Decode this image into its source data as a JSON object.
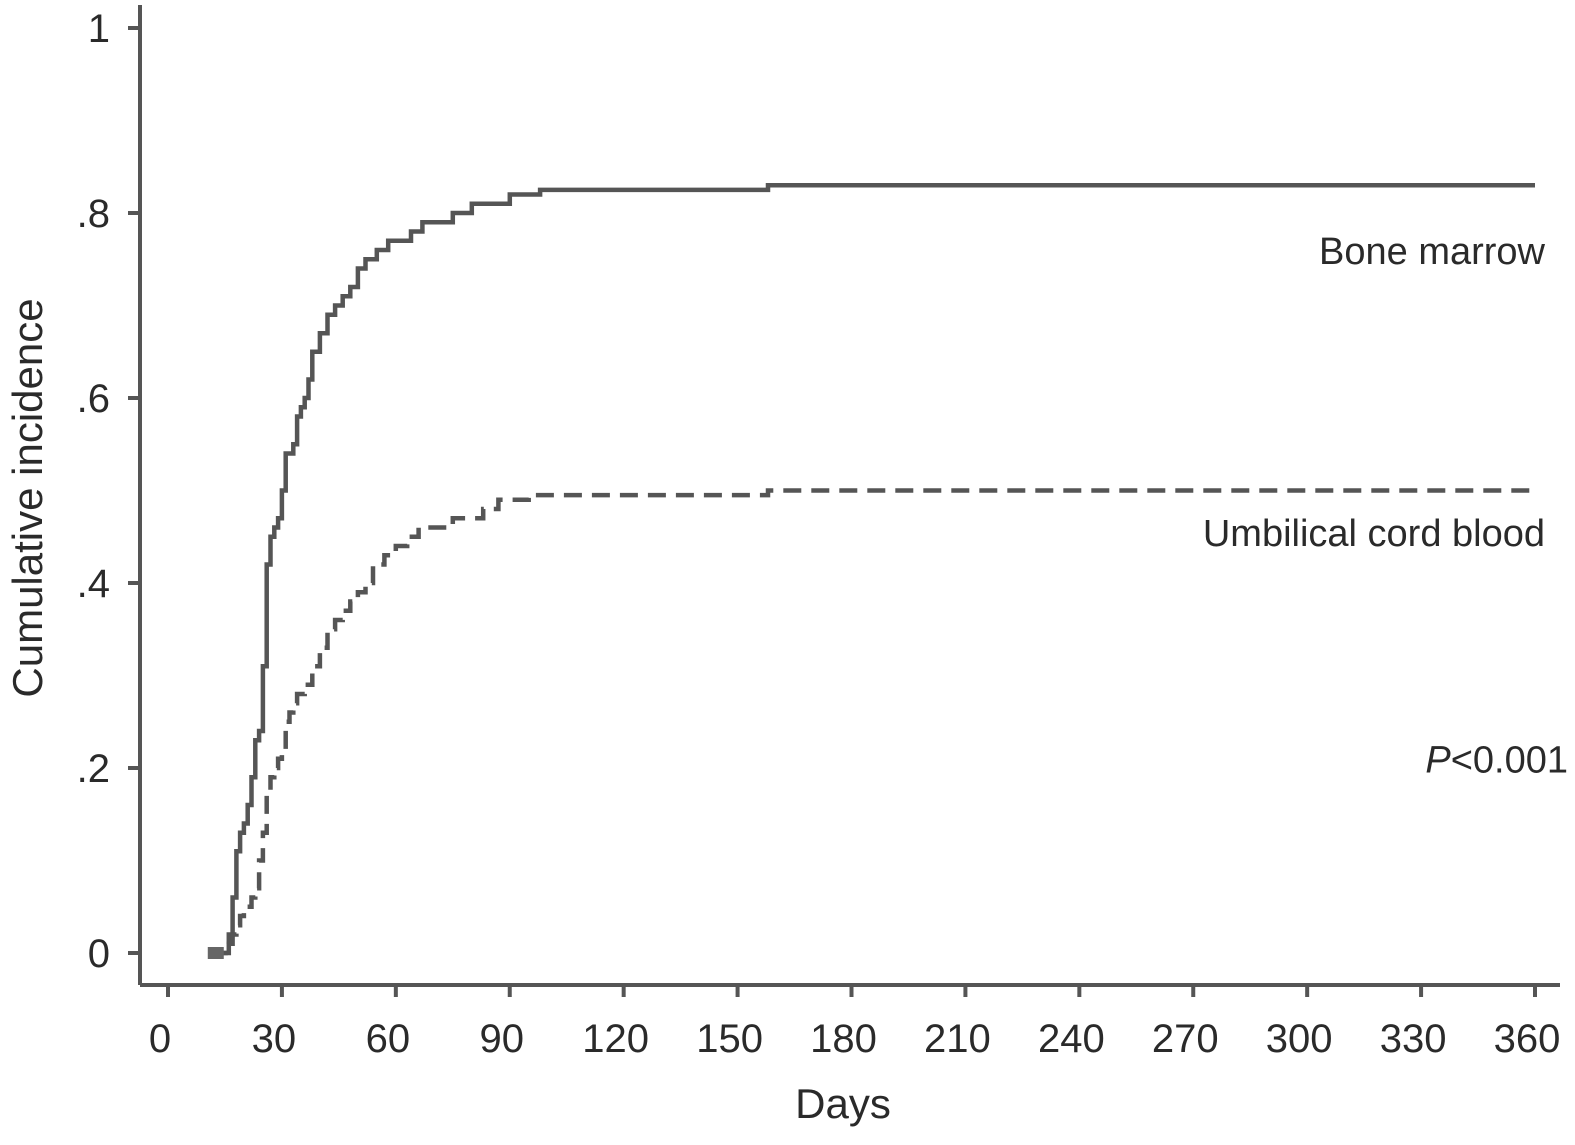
{
  "chart_data": {
    "type": "line",
    "xlabel": "Days",
    "ylabel": "Cumulative incidence",
    "xlim": [
      0,
      360
    ],
    "ylim": [
      0,
      1
    ],
    "x_ticks": [
      0,
      30,
      60,
      90,
      120,
      150,
      180,
      210,
      240,
      270,
      300,
      330,
      360
    ],
    "x_tick_labels": [
      "0",
      "30",
      "60",
      "90",
      "120",
      "150",
      "180",
      "210",
      "240",
      "270",
      "300",
      "330",
      "360"
    ],
    "y_ticks": [
      0,
      0.2,
      0.4,
      0.6,
      0.8,
      1
    ],
    "y_tick_labels": [
      "0",
      ".2",
      ".4",
      ".6",
      ".8",
      "1"
    ],
    "grid": false,
    "legend": "none",
    "series": [
      {
        "name": "Bone marrow",
        "line_style": "solid",
        "color": "#555555",
        "x": [
          11,
          15,
          16,
          17,
          18,
          19,
          20,
          21,
          22,
          23,
          24,
          25,
          26,
          27,
          28,
          29,
          30,
          31,
          32,
          33,
          34,
          35,
          36,
          37,
          38,
          40,
          42,
          44,
          46,
          48,
          50,
          52,
          55,
          58,
          61,
          64,
          67,
          70,
          75,
          80,
          85,
          90,
          95,
          98,
          158,
          360
        ],
        "y": [
          0,
          0,
          0.02,
          0.06,
          0.11,
          0.13,
          0.14,
          0.16,
          0.19,
          0.23,
          0.24,
          0.31,
          0.42,
          0.45,
          0.46,
          0.47,
          0.5,
          0.54,
          0.54,
          0.55,
          0.58,
          0.59,
          0.6,
          0.62,
          0.65,
          0.67,
          0.69,
          0.7,
          0.71,
          0.72,
          0.74,
          0.75,
          0.76,
          0.77,
          0.77,
          0.78,
          0.79,
          0.79,
          0.8,
          0.81,
          0.81,
          0.82,
          0.82,
          0.825,
          0.83,
          0.83
        ]
      },
      {
        "name": "Umbilical cord blood",
        "line_style": "dashed",
        "color": "#555555",
        "x": [
          11,
          15,
          16,
          17,
          18,
          19,
          20,
          21,
          22,
          23,
          24,
          25,
          26,
          27,
          28,
          29,
          30,
          31,
          32,
          33,
          34,
          36,
          38,
          40,
          42,
          44,
          46,
          48,
          50,
          52,
          54,
          57,
          60,
          63,
          66,
          70,
          75,
          80,
          83,
          87,
          90,
          95,
          98,
          158,
          360
        ],
        "y": [
          0,
          0,
          0.01,
          0.02,
          0.03,
          0.04,
          0.05,
          0.05,
          0.06,
          0.07,
          0.1,
          0.13,
          0.17,
          0.19,
          0.2,
          0.21,
          0.22,
          0.25,
          0.26,
          0.27,
          0.28,
          0.29,
          0.31,
          0.33,
          0.35,
          0.36,
          0.37,
          0.38,
          0.39,
          0.4,
          0.42,
          0.43,
          0.44,
          0.45,
          0.46,
          0.46,
          0.47,
          0.47,
          0.48,
          0.49,
          0.49,
          0.495,
          0.495,
          0.5,
          0.5
        ]
      }
    ],
    "annotations": [
      {
        "text": "Bone marrow",
        "x": 360,
        "y": 0.745
      },
      {
        "text": "Umbilical cord blood",
        "x": 360,
        "y": 0.44
      },
      {
        "text": "<0.001",
        "prefix_italic": "P",
        "x": 360,
        "y": 0.195
      }
    ]
  }
}
